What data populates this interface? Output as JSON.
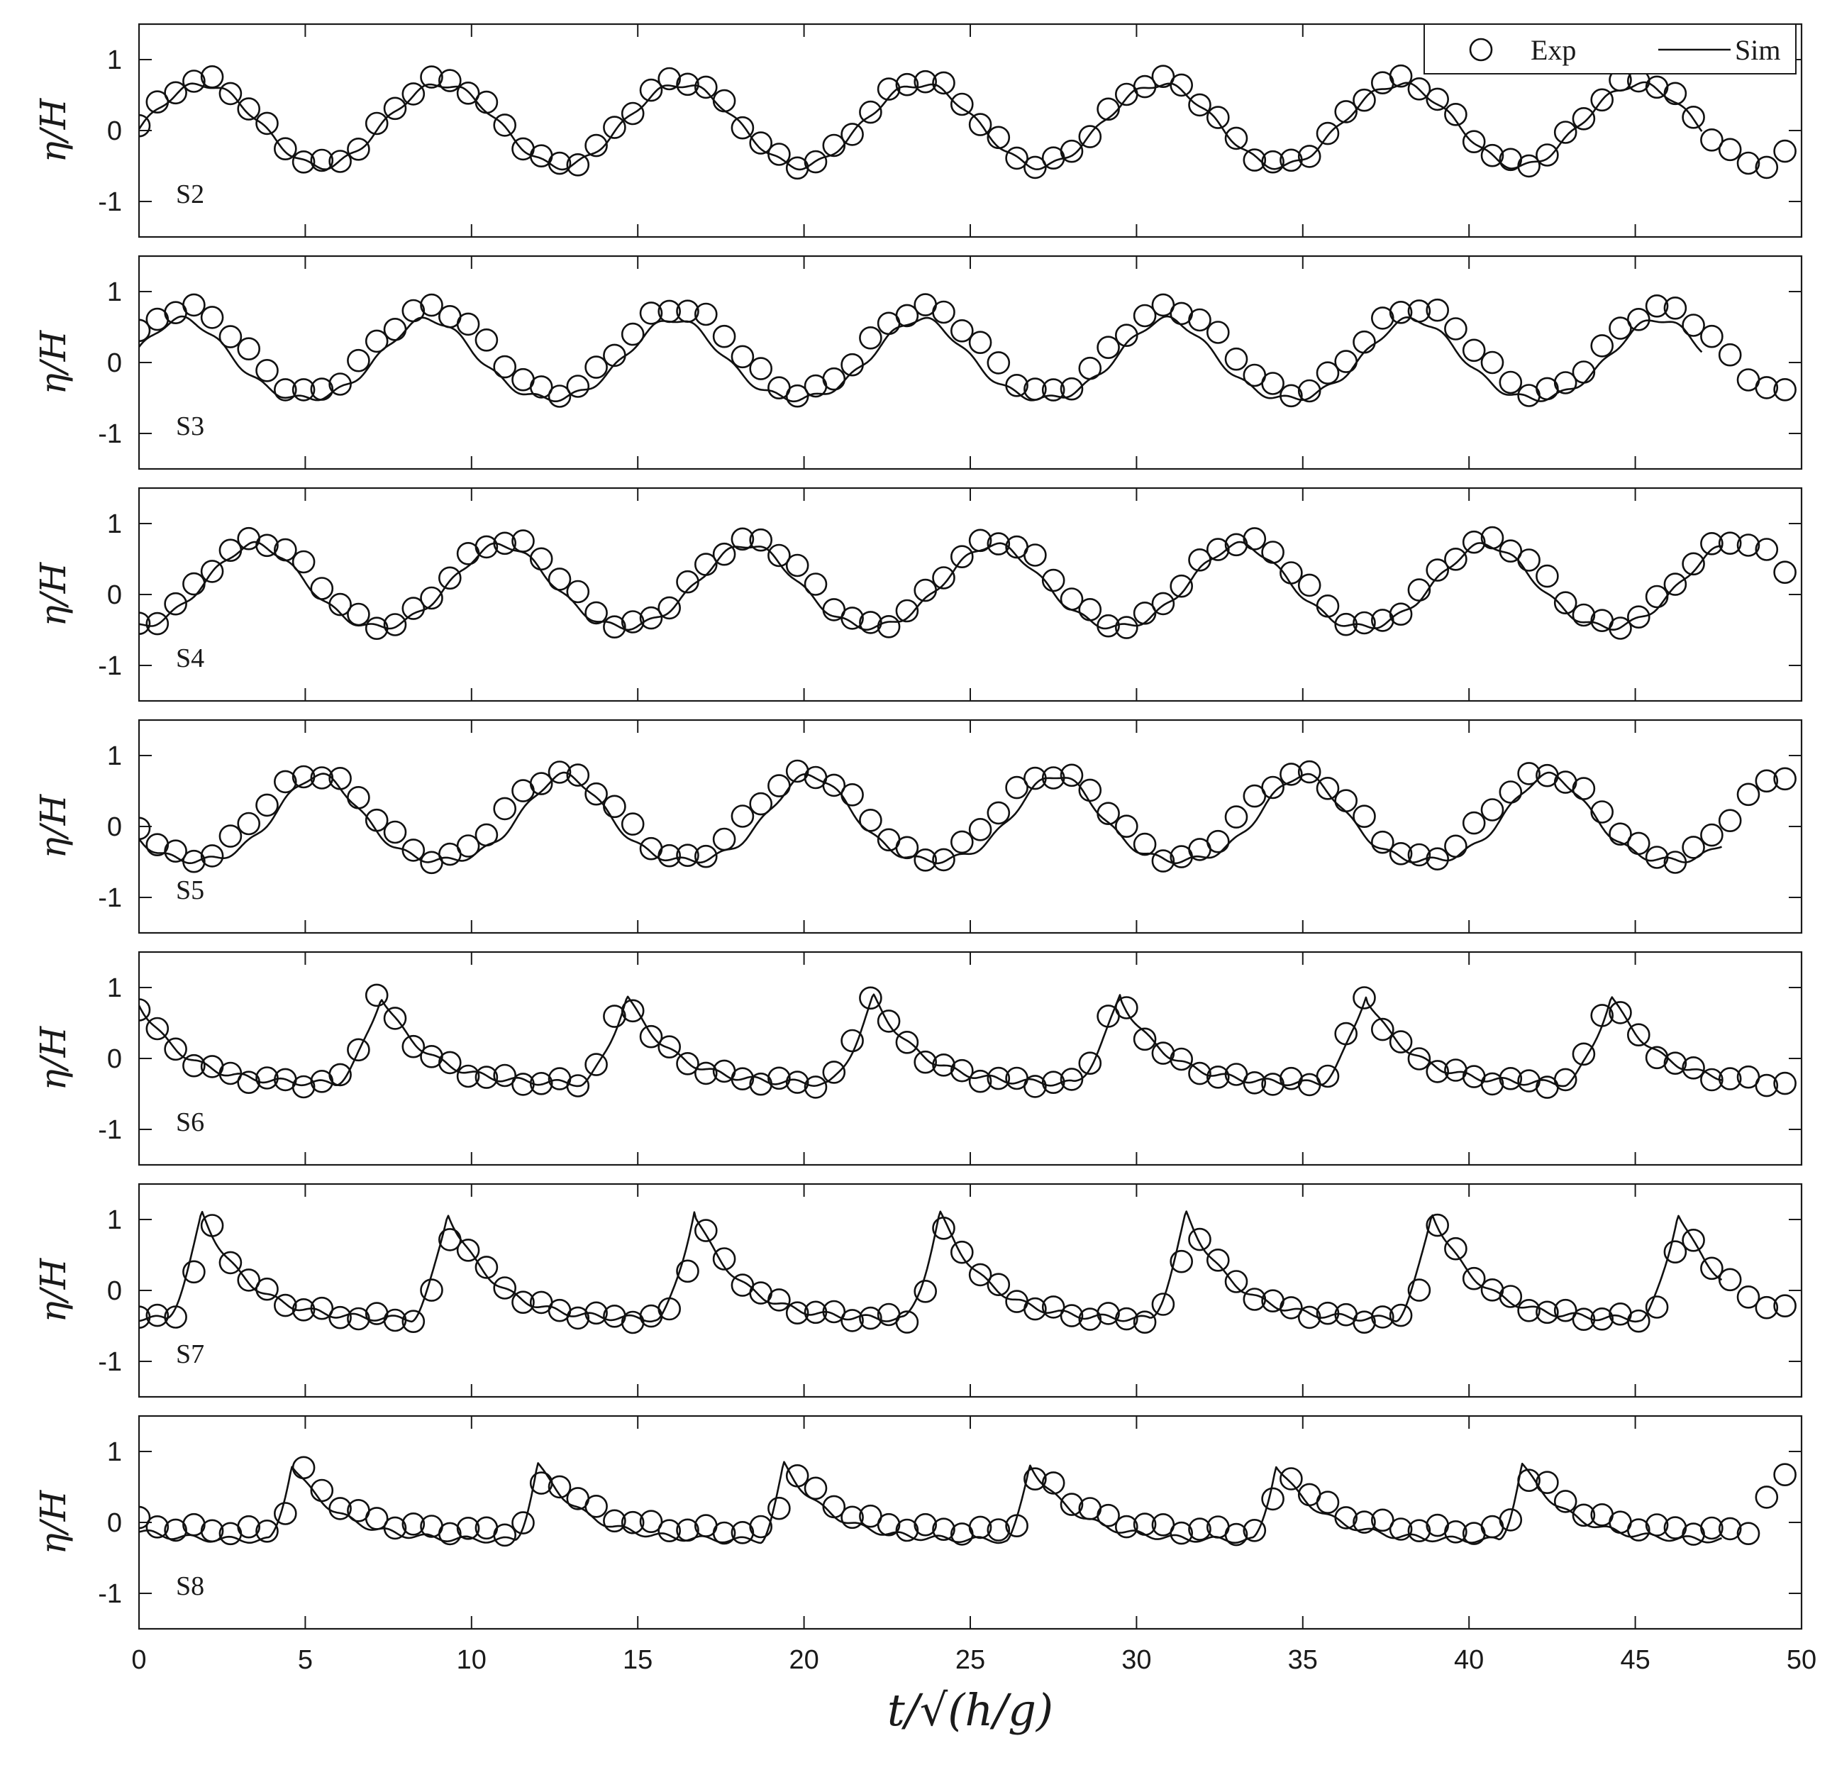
{
  "chart_data": {
    "type": "line",
    "xlabel": "t/√(h/g)",
    "ylabel": "η/H",
    "xlim": [
      0,
      50
    ],
    "ylim": [
      -1.5,
      1.5
    ],
    "xticks": [
      0,
      5,
      10,
      15,
      20,
      25,
      30,
      35,
      40,
      45,
      50
    ],
    "yticks": [
      1,
      0,
      -1
    ],
    "grid": false,
    "legend": {
      "placement": "top-right",
      "entries": [
        {
          "label": "Exp",
          "marker": "circle"
        },
        {
          "label": "Sim",
          "marker": "line"
        }
      ]
    },
    "panels": [
      {
        "label": "S2",
        "sim": {
          "shape": "sine",
          "period": 7.2,
          "x_peak": 1.9,
          "amplitude": 0.58,
          "offset": 0.07,
          "skew": 0.0,
          "start": 0.0,
          "end": 47.0
        },
        "exp": {
          "shape": "sine",
          "period": 7.2,
          "x_peak": 1.9,
          "amplitude": 0.6,
          "offset": 0.12,
          "start": 0.0,
          "end": 49.5,
          "step": 0.55
        }
      },
      {
        "label": "S3",
        "sim": {
          "shape": "sine",
          "period": 7.4,
          "x_peak": 1.3,
          "amplitude": 0.56,
          "offset": 0.05,
          "skew": 0.25,
          "start": 0.0,
          "end": 47.0
        },
        "exp": {
          "shape": "sine",
          "period": 7.4,
          "x_peak": 1.4,
          "amplitude": 0.6,
          "offset": 0.17,
          "start": 0.0,
          "end": 49.5,
          "step": 0.55
        }
      },
      {
        "label": "S4",
        "sim": {
          "shape": "sine",
          "period": 7.4,
          "x_peak": 3.5,
          "amplitude": 0.58,
          "offset": 0.12,
          "skew": 0.2,
          "start": 0.0,
          "end": 47.6
        },
        "exp": {
          "shape": "sine",
          "period": 7.4,
          "x_peak": 3.6,
          "amplitude": 0.6,
          "offset": 0.16,
          "start": 0.0,
          "end": 49.5,
          "step": 0.55
        }
      },
      {
        "label": "S5",
        "sim": {
          "shape": "sine",
          "period": 7.4,
          "x_peak": 5.4,
          "amplitude": 0.6,
          "offset": 0.12,
          "skew": 0.4,
          "start": 0.0,
          "end": 47.6
        },
        "exp": {
          "shape": "sine",
          "period": 7.4,
          "x_peak": 5.3,
          "amplitude": 0.6,
          "offset": 0.14,
          "start": 0.0,
          "end": 49.5,
          "step": 0.55
        }
      },
      {
        "label": "S6",
        "sim": {
          "shape": "spike",
          "period": 7.4,
          "x_peak": 7.3,
          "amplitude": 0.9,
          "offset": -0.35,
          "rise": 1.4,
          "start": 0.0,
          "end": 47.6
        },
        "exp": {
          "shape": "spike",
          "period": 7.4,
          "x_peak": 7.2,
          "amplitude": 0.95,
          "offset": -0.35,
          "rise": 1.4,
          "start": 0.0,
          "end": 49.5,
          "step": 0.55
        }
      },
      {
        "label": "S7",
        "sim": {
          "shape": "spike",
          "period": 7.4,
          "x_peak": 1.9,
          "amplitude": 1.13,
          "offset": -0.4,
          "rise": 1.1,
          "start": 0.0,
          "end": 47.6
        },
        "exp": {
          "shape": "spike",
          "period": 7.4,
          "x_peak": 2.1,
          "amplitude": 1.0,
          "offset": -0.4,
          "rise": 1.2,
          "start": 0.0,
          "end": 49.5,
          "step": 0.55
        }
      },
      {
        "label": "S8",
        "sim": {
          "shape": "spike",
          "period": 7.4,
          "x_peak": 4.6,
          "amplitude": 0.85,
          "offset": -0.25,
          "rise": 0.7,
          "start": 0.0,
          "end": 47.6
        },
        "exp": {
          "shape": "spike",
          "period": 7.4,
          "x_peak": 4.9,
          "amplitude": 0.78,
          "offset": -0.12,
          "rise": 1.0,
          "start": 0.0,
          "end": 49.5,
          "step": 0.55
        }
      }
    ]
  }
}
